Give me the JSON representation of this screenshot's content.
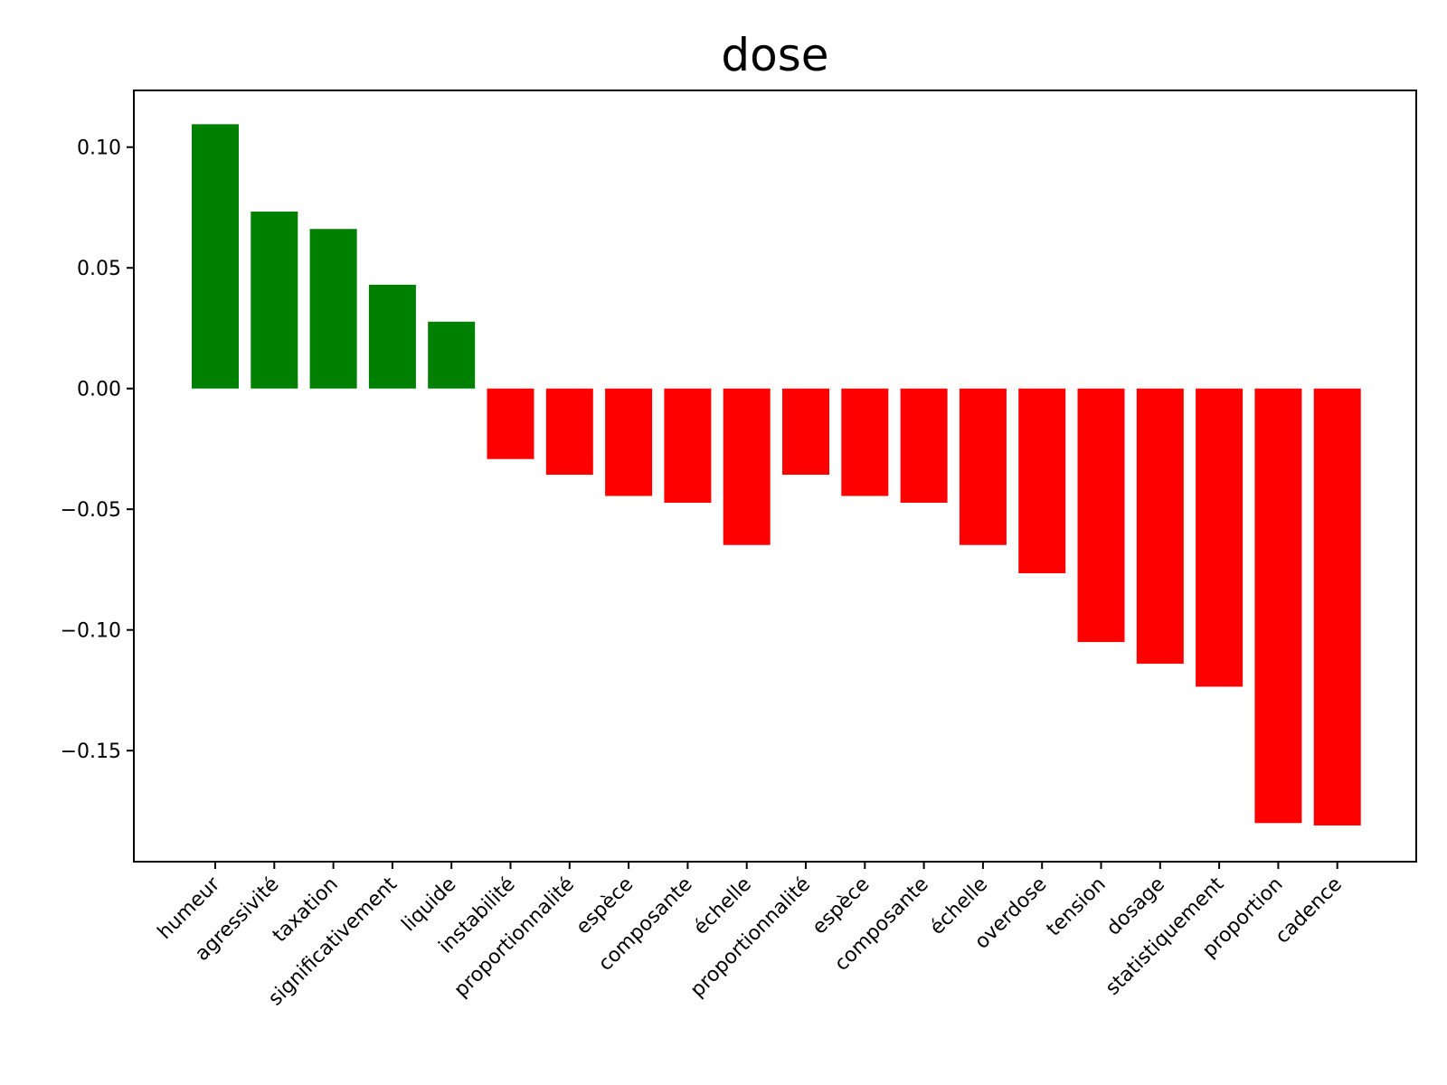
{
  "chart_data": {
    "type": "bar",
    "title": "dose",
    "xlabel": "",
    "ylabel": "",
    "ylim": [
      -0.196,
      0.1235
    ],
    "yticks": [
      0.1,
      0.05,
      0.0,
      -0.05,
      -0.1,
      -0.15
    ],
    "ytick_labels": [
      "0.10",
      "0.05",
      "0.00",
      "−0.05",
      "−0.10",
      "−0.15"
    ],
    "categories": [
      "humeur",
      "agressivité",
      "taxation",
      "significativement",
      "liquide",
      "instabilité",
      "proportionnalité",
      "espèce",
      "composante",
      "échelle",
      "proportionnalité",
      "espèce",
      "composante",
      "échelle",
      "overdose",
      "tension",
      "dosage",
      "statistiquement",
      "proportion",
      "cadence"
    ],
    "values": [
      0.1095,
      0.0733,
      0.0661,
      0.043,
      0.0277,
      -0.0292,
      -0.0357,
      -0.0445,
      -0.0473,
      -0.0648,
      -0.0357,
      -0.0445,
      -0.0473,
      -0.0648,
      -0.0765,
      -0.105,
      -0.114,
      -0.1235,
      -0.18,
      -0.181
    ],
    "grid": false,
    "legend": "none",
    "colors": {
      "positive": "#008000",
      "negative": "#ff0000"
    }
  }
}
